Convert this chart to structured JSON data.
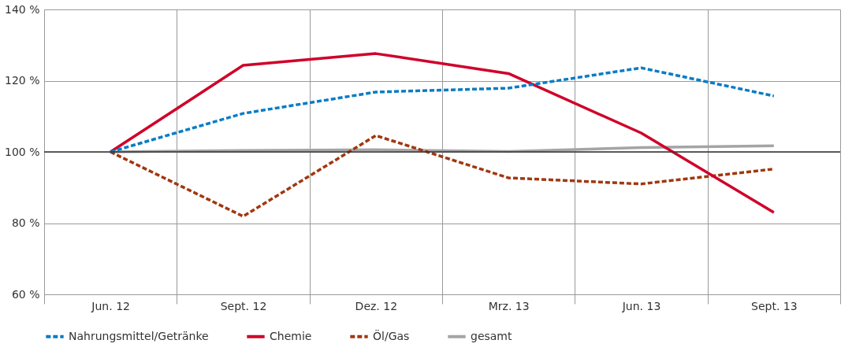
{
  "chart_data": {
    "type": "line",
    "categories": [
      "Jun. 12",
      "Sept. 12",
      "Dez. 12",
      "Mrz. 13",
      "Jun. 13",
      "Sept. 13"
    ],
    "series": [
      {
        "name": "Nahrungsmittel/Getränke",
        "color": "#0a7cc4",
        "line_style": "dashed",
        "values": [
          100,
          110.8,
          116.8,
          117.9,
          123.6,
          115.7
        ]
      },
      {
        "name": "Chemie",
        "color": "#d0002a",
        "line_style": "solid",
        "values": [
          100,
          124.3,
          127.6,
          122,
          105.3,
          83
        ]
      },
      {
        "name": "Öl/Gas",
        "color": "#a0380f",
        "line_style": "dashed",
        "values": [
          100,
          81.9,
          104.6,
          92.7,
          91,
          95.2
        ]
      },
      {
        "name": "gesamt",
        "color": "#a3a4a6",
        "line_style": "solid",
        "values": [
          100,
          100.4,
          100.6,
          100.1,
          101.2,
          101.7
        ]
      }
    ],
    "ylim": [
      60,
      140
    ],
    "yticks": [
      {
        "value": 60,
        "label": "60 %"
      },
      {
        "value": 80,
        "label": "80 %"
      },
      {
        "value": 100,
        "label": "100 %"
      },
      {
        "value": 120,
        "label": "120 %"
      },
      {
        "value": 140,
        "label": "140 %"
      }
    ],
    "ref_lines": [
      {
        "axis": "y",
        "value": 100,
        "color": "#333333"
      }
    ],
    "grid": true,
    "legend": "bottom",
    "marker": "none"
  }
}
